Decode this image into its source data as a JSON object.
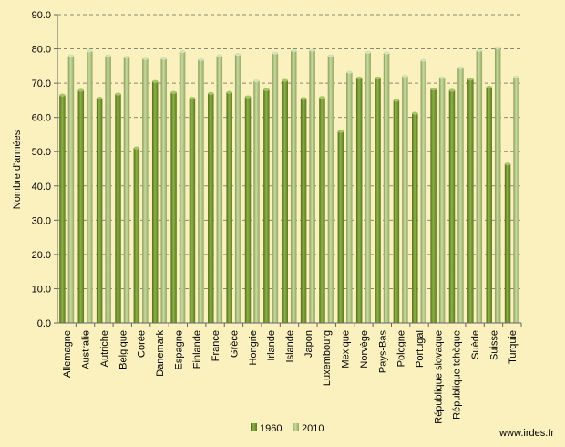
{
  "chart_data": {
    "type": "bar",
    "title": "",
    "xlabel": "",
    "ylabel": "Nombre d'années",
    "ylim": [
      0,
      90
    ],
    "ytick_labels": [
      "0.0",
      "10.0",
      "20.0",
      "30.0",
      "40.0",
      "50.0",
      "60.0",
      "70.0",
      "80.0",
      "90.0"
    ],
    "grid": "horizontal dashed",
    "legend_position": "bottom",
    "categories": [
      "Allemagne",
      "Australie",
      "Autriche",
      "Belgique",
      "Corée",
      "Danemark",
      "Espagne",
      "Finlande",
      "France",
      "Grèce",
      "Hongrie",
      "Irlande",
      "Islande",
      "Japon",
      "Luxembourg",
      "Mexique",
      "Norvège",
      "Pays-Bas",
      "Pologne",
      "Portugal",
      "République slovaque",
      "République tchèque",
      "Suède",
      "Suisse",
      "Turquie"
    ],
    "series": [
      {
        "name": "1960",
        "color": "#6b8f2a",
        "values": [
          66.5,
          67.9,
          65.6,
          66.8,
          51.1,
          70.5,
          67.3,
          65.6,
          67.0,
          67.3,
          66.0,
          68.1,
          70.8,
          65.5,
          65.8,
          55.9,
          71.5,
          71.5,
          65.0,
          61.2,
          68.3,
          67.9,
          71.2,
          68.8,
          46.4
        ]
      },
      {
        "name": "2010",
        "color": "#a9bd78",
        "values": [
          78.0,
          79.4,
          78.0,
          77.6,
          77.2,
          77.2,
          79.2,
          76.9,
          78.0,
          78.4,
          70.7,
          78.8,
          79.5,
          79.6,
          78.0,
          73.2,
          79.0,
          78.8,
          72.1,
          76.7,
          71.6,
          74.5,
          79.5,
          80.3,
          71.8
        ]
      }
    ]
  },
  "footer": {
    "source": "www.irdes.fr"
  }
}
